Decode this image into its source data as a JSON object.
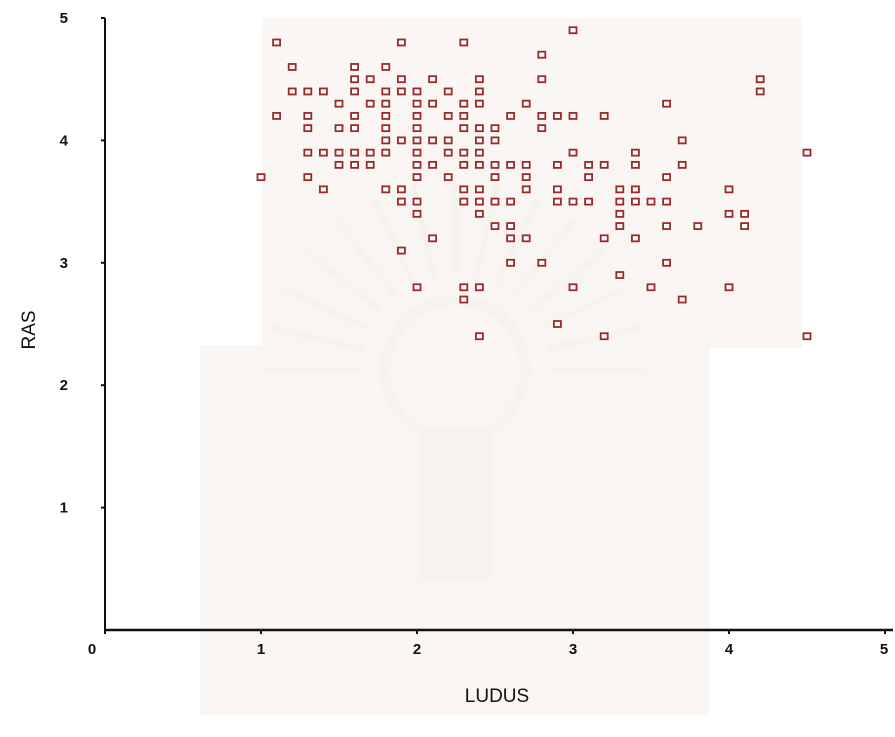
{
  "chart_data": {
    "type": "scatter",
    "xlabel": "LUDUS",
    "ylabel": "RAS",
    "xlim": [
      0,
      5
    ],
    "ylim": [
      0,
      5
    ],
    "x_ticks": [
      "0",
      "1",
      "2",
      "3",
      "4",
      "5"
    ],
    "y_ticks": [
      "1",
      "2",
      "3",
      "4",
      "5"
    ],
    "grid": false,
    "marker": "open-square",
    "marker_color": "#9a2a2a",
    "points": [
      {
        "x": 1.0,
        "y": 3.7
      },
      {
        "x": 1.1,
        "y": 4.8
      },
      {
        "x": 1.1,
        "y": 4.2
      },
      {
        "x": 1.2,
        "y": 4.6
      },
      {
        "x": 1.2,
        "y": 4.4
      },
      {
        "x": 1.3,
        "y": 4.4
      },
      {
        "x": 1.3,
        "y": 4.2
      },
      {
        "x": 1.3,
        "y": 4.1
      },
      {
        "x": 1.3,
        "y": 3.9
      },
      {
        "x": 1.3,
        "y": 3.7
      },
      {
        "x": 1.4,
        "y": 4.4
      },
      {
        "x": 1.4,
        "y": 3.9
      },
      {
        "x": 1.4,
        "y": 3.6
      },
      {
        "x": 1.5,
        "y": 4.3
      },
      {
        "x": 1.5,
        "y": 4.1
      },
      {
        "x": 1.5,
        "y": 3.9
      },
      {
        "x": 1.5,
        "y": 3.8
      },
      {
        "x": 1.6,
        "y": 4.6
      },
      {
        "x": 1.6,
        "y": 4.5
      },
      {
        "x": 1.6,
        "y": 4.4
      },
      {
        "x": 1.6,
        "y": 4.2
      },
      {
        "x": 1.6,
        "y": 4.1
      },
      {
        "x": 1.6,
        "y": 3.9
      },
      {
        "x": 1.6,
        "y": 3.8
      },
      {
        "x": 1.7,
        "y": 4.5
      },
      {
        "x": 1.7,
        "y": 4.3
      },
      {
        "x": 1.7,
        "y": 3.9
      },
      {
        "x": 1.7,
        "y": 3.8
      },
      {
        "x": 1.8,
        "y": 4.6
      },
      {
        "x": 1.8,
        "y": 4.4
      },
      {
        "x": 1.8,
        "y": 4.3
      },
      {
        "x": 1.8,
        "y": 4.2
      },
      {
        "x": 1.8,
        "y": 4.1
      },
      {
        "x": 1.8,
        "y": 4.0
      },
      {
        "x": 1.8,
        "y": 3.9
      },
      {
        "x": 1.8,
        "y": 3.6
      },
      {
        "x": 1.9,
        "y": 4.8
      },
      {
        "x": 1.9,
        "y": 4.5
      },
      {
        "x": 1.9,
        "y": 4.4
      },
      {
        "x": 1.9,
        "y": 4.0
      },
      {
        "x": 1.9,
        "y": 3.6
      },
      {
        "x": 1.9,
        "y": 3.5
      },
      {
        "x": 1.9,
        "y": 3.1
      },
      {
        "x": 2.0,
        "y": 4.4
      },
      {
        "x": 2.0,
        "y": 4.3
      },
      {
        "x": 2.0,
        "y": 4.2
      },
      {
        "x": 2.0,
        "y": 4.1
      },
      {
        "x": 2.0,
        "y": 4.0
      },
      {
        "x": 2.0,
        "y": 3.9
      },
      {
        "x": 2.0,
        "y": 3.8
      },
      {
        "x": 2.0,
        "y": 3.7
      },
      {
        "x": 2.0,
        "y": 3.5
      },
      {
        "x": 2.0,
        "y": 3.4
      },
      {
        "x": 2.0,
        "y": 2.8
      },
      {
        "x": 2.1,
        "y": 4.5
      },
      {
        "x": 2.1,
        "y": 4.3
      },
      {
        "x": 2.1,
        "y": 4.0
      },
      {
        "x": 2.1,
        "y": 3.8
      },
      {
        "x": 2.1,
        "y": 3.2
      },
      {
        "x": 2.2,
        "y": 4.4
      },
      {
        "x": 2.2,
        "y": 4.2
      },
      {
        "x": 2.2,
        "y": 4.0
      },
      {
        "x": 2.2,
        "y": 3.9
      },
      {
        "x": 2.2,
        "y": 3.7
      },
      {
        "x": 2.3,
        "y": 4.8
      },
      {
        "x": 2.3,
        "y": 4.3
      },
      {
        "x": 2.3,
        "y": 4.2
      },
      {
        "x": 2.3,
        "y": 4.1
      },
      {
        "x": 2.3,
        "y": 3.9
      },
      {
        "x": 2.3,
        "y": 3.8
      },
      {
        "x": 2.3,
        "y": 3.6
      },
      {
        "x": 2.3,
        "y": 3.5
      },
      {
        "x": 2.3,
        "y": 2.8
      },
      {
        "x": 2.3,
        "y": 2.7
      },
      {
        "x": 2.4,
        "y": 4.5
      },
      {
        "x": 2.4,
        "y": 4.4
      },
      {
        "x": 2.4,
        "y": 4.3
      },
      {
        "x": 2.4,
        "y": 4.1
      },
      {
        "x": 2.4,
        "y": 4.0
      },
      {
        "x": 2.4,
        "y": 3.9
      },
      {
        "x": 2.4,
        "y": 3.8
      },
      {
        "x": 2.4,
        "y": 3.6
      },
      {
        "x": 2.4,
        "y": 3.5
      },
      {
        "x": 2.4,
        "y": 3.4
      },
      {
        "x": 2.4,
        "y": 2.8
      },
      {
        "x": 2.4,
        "y": 2.4
      },
      {
        "x": 2.5,
        "y": 4.1
      },
      {
        "x": 2.5,
        "y": 4.0
      },
      {
        "x": 2.5,
        "y": 3.8
      },
      {
        "x": 2.5,
        "y": 3.7
      },
      {
        "x": 2.5,
        "y": 3.5
      },
      {
        "x": 2.5,
        "y": 3.3
      },
      {
        "x": 2.6,
        "y": 4.2
      },
      {
        "x": 2.6,
        "y": 3.8
      },
      {
        "x": 2.6,
        "y": 3.5
      },
      {
        "x": 2.6,
        "y": 3.3
      },
      {
        "x": 2.6,
        "y": 3.2
      },
      {
        "x": 2.6,
        "y": 3.0
      },
      {
        "x": 2.7,
        "y": 4.3
      },
      {
        "x": 2.7,
        "y": 3.8
      },
      {
        "x": 2.7,
        "y": 3.7
      },
      {
        "x": 2.7,
        "y": 3.6
      },
      {
        "x": 2.7,
        "y": 3.2
      },
      {
        "x": 2.8,
        "y": 4.7
      },
      {
        "x": 2.8,
        "y": 4.5
      },
      {
        "x": 2.8,
        "y": 4.2
      },
      {
        "x": 2.8,
        "y": 4.1
      },
      {
        "x": 2.8,
        "y": 3.0
      },
      {
        "x": 2.9,
        "y": 4.2
      },
      {
        "x": 2.9,
        "y": 3.8
      },
      {
        "x": 2.9,
        "y": 3.6
      },
      {
        "x": 2.9,
        "y": 3.5
      },
      {
        "x": 2.9,
        "y": 2.5
      },
      {
        "x": 3.0,
        "y": 4.9
      },
      {
        "x": 3.0,
        "y": 4.2
      },
      {
        "x": 3.0,
        "y": 3.9
      },
      {
        "x": 3.0,
        "y": 3.5
      },
      {
        "x": 3.0,
        "y": 2.8
      },
      {
        "x": 3.1,
        "y": 3.8
      },
      {
        "x": 3.1,
        "y": 3.7
      },
      {
        "x": 3.1,
        "y": 3.5
      },
      {
        "x": 3.2,
        "y": 4.2
      },
      {
        "x": 3.2,
        "y": 3.8
      },
      {
        "x": 3.2,
        "y": 3.2
      },
      {
        "x": 3.2,
        "y": 2.4
      },
      {
        "x": 3.3,
        "y": 3.6
      },
      {
        "x": 3.3,
        "y": 3.5
      },
      {
        "x": 3.3,
        "y": 3.4
      },
      {
        "x": 3.3,
        "y": 3.3
      },
      {
        "x": 3.3,
        "y": 2.9
      },
      {
        "x": 3.4,
        "y": 3.9
      },
      {
        "x": 3.4,
        "y": 3.8
      },
      {
        "x": 3.4,
        "y": 3.6
      },
      {
        "x": 3.4,
        "y": 3.5
      },
      {
        "x": 3.4,
        "y": 3.2
      },
      {
        "x": 3.5,
        "y": 3.5
      },
      {
        "x": 3.5,
        "y": 2.8
      },
      {
        "x": 3.6,
        "y": 4.3
      },
      {
        "x": 3.6,
        "y": 3.7
      },
      {
        "x": 3.6,
        "y": 3.5
      },
      {
        "x": 3.6,
        "y": 3.3
      },
      {
        "x": 3.6,
        "y": 3.0
      },
      {
        "x": 3.7,
        "y": 4.0
      },
      {
        "x": 3.7,
        "y": 3.8
      },
      {
        "x": 3.7,
        "y": 2.7
      },
      {
        "x": 3.8,
        "y": 3.3
      },
      {
        "x": 4.0,
        "y": 3.6
      },
      {
        "x": 4.0,
        "y": 3.4
      },
      {
        "x": 4.0,
        "y": 2.8
      },
      {
        "x": 4.1,
        "y": 3.4
      },
      {
        "x": 4.1,
        "y": 3.3
      },
      {
        "x": 4.2,
        "y": 4.5
      },
      {
        "x": 4.2,
        "y": 4.4
      },
      {
        "x": 4.5,
        "y": 3.9
      },
      {
        "x": 4.5,
        "y": 2.4
      }
    ]
  }
}
